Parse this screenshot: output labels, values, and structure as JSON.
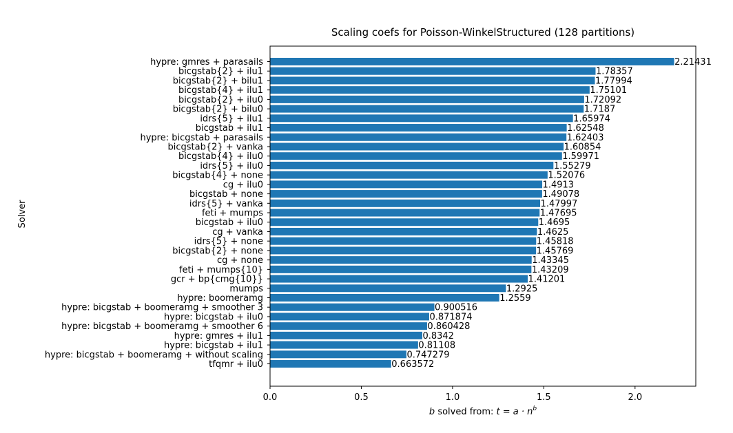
{
  "chart_data": {
    "type": "bar",
    "orientation": "horizontal",
    "title": "Scaling coefs for Poisson-WinkelStructured (128 partitions)",
    "ylabel": "Solver",
    "xlabel_prefix": "b",
    "xlabel_mid": " solved from: ",
    "xlabel_eq": "t = a · n",
    "xlabel_exp": "b",
    "xlim": [
      0,
      2.3329
    ],
    "xticks": [
      "0.0",
      "0.5",
      "1.0",
      "1.5",
      "2.0"
    ],
    "bar_color": "#1f77b4",
    "grid": false,
    "categories": [
      "hypre: gmres + parasails",
      "bicgstab{2} + ilu1",
      "bicgstab{2} + bilu1",
      "bicgstab{4} + ilu1",
      "bicgstab{2} + ilu0",
      "bicgstab{2} + bilu0",
      "idrs{5} + ilu1",
      "bicgstab + ilu1",
      "hypre: bicgstab + parasails",
      "bicgstab{2} + vanka",
      "bicgstab{4} + ilu0",
      "idrs{5} + ilu0",
      "bicgstab{4} + none",
      "cg + ilu0",
      "bicgstab + none",
      "idrs{5} + vanka",
      "feti + mumps",
      "bicgstab + ilu0",
      "cg + vanka",
      "idrs{5} + none",
      "bicgstab{2} + none",
      "cg + none",
      "feti + mumps{10}",
      "gcr + bp{cmg{10}}",
      "mumps",
      "hypre: boomeramg",
      "hypre: bicgstab + boomeramg + smoother 3",
      "hypre: bicgstab + ilu0",
      "hypre: bicgstab + boomeramg + smoother 6",
      "hypre: gmres + ilu1",
      "hypre: bicgstab + ilu1",
      "hypre: bicgstab + boomeramg + without scaling",
      "tfqmr + ilu0"
    ],
    "values": [
      2.21431,
      1.78357,
      1.77994,
      1.75101,
      1.72092,
      1.7187,
      1.65974,
      1.62548,
      1.62403,
      1.60854,
      1.59971,
      1.55279,
      1.52076,
      1.4913,
      1.49078,
      1.47997,
      1.47695,
      1.4695,
      1.4625,
      1.45818,
      1.45769,
      1.43345,
      1.43209,
      1.41201,
      1.2925,
      1.2559,
      0.900516,
      0.871874,
      0.860428,
      0.8342,
      0.81108,
      0.747279,
      0.663572
    ],
    "value_labels": [
      "2.21431",
      "1.78357",
      "1.77994",
      "1.75101",
      "1.72092",
      "1.7187",
      "1.65974",
      "1.62548",
      "1.62403",
      "1.60854",
      "1.59971",
      "1.55279",
      "1.52076",
      "1.4913",
      "1.49078",
      "1.47997",
      "1.47695",
      "1.4695",
      "1.4625",
      "1.45818",
      "1.45769",
      "1.43345",
      "1.43209",
      "1.41201",
      "1.2925",
      "1.2559",
      "0.900516",
      "0.871874",
      "0.860428",
      "0.8342",
      "0.81108",
      "0.747279",
      "0.663572"
    ]
  }
}
